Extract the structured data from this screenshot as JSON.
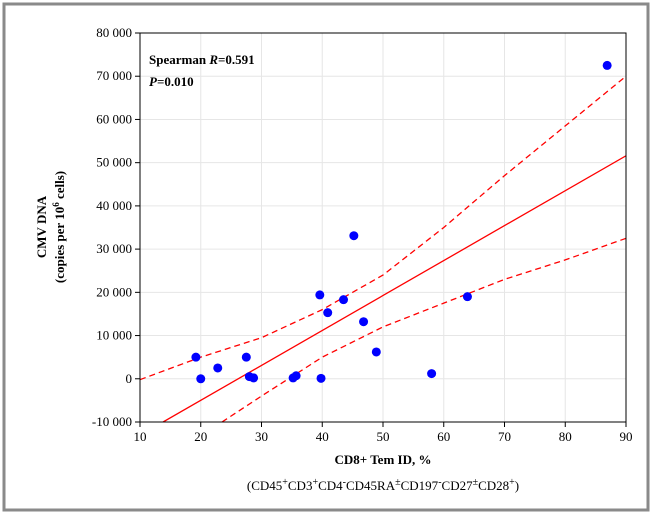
{
  "chart_data": {
    "type": "scatter",
    "x_label": "CD8+ Tem ID, %",
    "x_label_sub": [
      "(CD45",
      "+",
      "CD3",
      "+",
      "CD4",
      "-",
      "CD45RA",
      "±",
      "CD197",
      "-",
      "CD27",
      "±",
      "CD28",
      "+",
      ")"
    ],
    "y_label": [
      "CMV DNA",
      "(copies per 10",
      "6",
      " cells)"
    ],
    "stats": [
      [
        "Spearman ",
        "R",
        "=0.591"
      ],
      [
        "P",
        "=0.010"
      ]
    ],
    "xlim": [
      10,
      90
    ],
    "xticks": [
      10,
      20,
      30,
      40,
      50,
      60,
      70,
      80,
      90
    ],
    "ylim": [
      -10000,
      80000
    ],
    "yticks": [
      {
        "value": -10000,
        "label": "-10 000"
      },
      {
        "value": 0,
        "label": "0"
      },
      {
        "value": 10000,
        "label": "10 000"
      },
      {
        "value": 20000,
        "label": "20 000"
      },
      {
        "value": 30000,
        "label": "30 000"
      },
      {
        "value": 40000,
        "label": "40 000"
      },
      {
        "value": 50000,
        "label": "50 000"
      },
      {
        "value": 60000,
        "label": "60 000"
      },
      {
        "value": 70000,
        "label": "70 000"
      },
      {
        "value": 80000,
        "label": "80 000"
      }
    ],
    "grid": true,
    "series": [
      {
        "color": "#0000ff",
        "x": [
          19.2,
          20,
          22.8,
          27.5,
          28,
          28.7,
          35.2,
          35.7,
          39.6,
          39.8,
          40.9,
          43.5,
          45.2,
          46.8,
          48.9,
          58,
          63.9,
          86.9
        ],
        "values": [
          5000,
          0,
          2500,
          5000,
          500,
          200,
          200,
          700,
          19400,
          100,
          15300,
          18300,
          33100,
          13200,
          6200,
          1200,
          19000,
          72500
        ]
      }
    ],
    "fit": {
      "color": "#ff0000",
      "x": [
        13.8,
        90
      ],
      "values": [
        -10000,
        51600
      ]
    },
    "upper": {
      "color": "#ff0000",
      "x": [
        10,
        20,
        30,
        40,
        50,
        60,
        70,
        80,
        90
      ],
      "values": [
        -200,
        5000,
        9500,
        16000,
        24000,
        35000,
        47000,
        58500,
        70000
      ]
    },
    "lower": {
      "color": "#ff0000",
      "x": [
        23.5,
        30,
        40,
        50,
        60,
        70,
        80,
        90
      ],
      "values": [
        -10000,
        -4000,
        5000,
        12000,
        17500,
        23000,
        27500,
        32500
      ]
    }
  }
}
